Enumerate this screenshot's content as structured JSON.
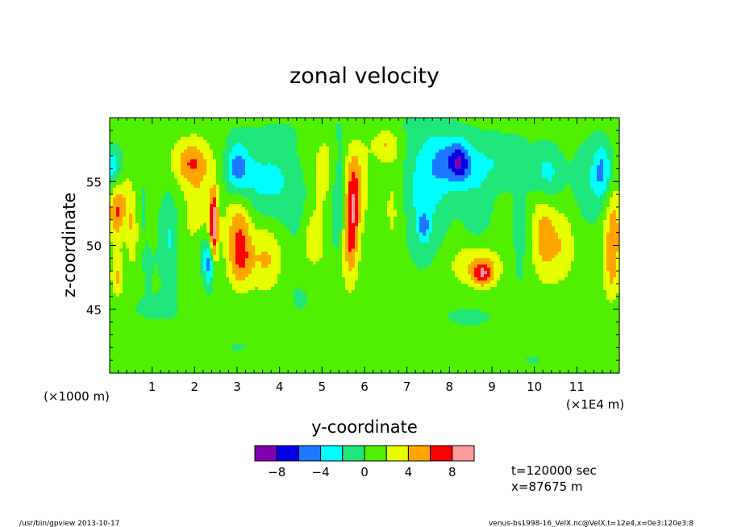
{
  "chart_data": {
    "type": "heatmap",
    "title": "zonal velocity",
    "xlabel": "y-coordinate",
    "ylabel": "z-coordinate",
    "x_unit_note": "(×1E4 m)",
    "y_unit_note": "(×1000 m)",
    "xlim": [
      0,
      120000
    ],
    "ylim": [
      40000,
      60000
    ],
    "x_ticks": [
      {
        "value": 10000,
        "label": "1"
      },
      {
        "value": 20000,
        "label": "2"
      },
      {
        "value": 30000,
        "label": "3"
      },
      {
        "value": 40000,
        "label": "4"
      },
      {
        "value": 50000,
        "label": "5"
      },
      {
        "value": 60000,
        "label": "6"
      },
      {
        "value": 70000,
        "label": "7"
      },
      {
        "value": 80000,
        "label": "8"
      },
      {
        "value": 90000,
        "label": "9"
      },
      {
        "value": 100000,
        "label": "10"
      },
      {
        "value": 110000,
        "label": "11"
      }
    ],
    "y_ticks": [
      {
        "value": 45000,
        "label": "45"
      },
      {
        "value": 50000,
        "label": "50"
      },
      {
        "value": 55000,
        "label": "55"
      }
    ],
    "colorbar": {
      "levels": [
        -10,
        -8,
        -6,
        -4,
        -2,
        0,
        2,
        4,
        6,
        8,
        10
      ],
      "colors": [
        "#8000b0",
        "#0000e6",
        "#1e78ff",
        "#00ffff",
        "#1ee67a",
        "#50f000",
        "#e6ff00",
        "#ffa500",
        "#ff0000",
        "#ff9a9a"
      ],
      "tick_labels": [
        {
          "value": -8,
          "label": "−8"
        },
        {
          "value": -4,
          "label": "−4"
        },
        {
          "value": 0,
          "label": "0"
        },
        {
          "value": 4,
          "label": "4"
        },
        {
          "value": 8,
          "label": "8"
        }
      ]
    },
    "background_value": 0.8,
    "features": [
      {
        "y": 3000,
        "z": 54000,
        "amp": 2.5,
        "sy": 1800,
        "sz": 2000
      },
      {
        "y": 1000,
        "z": 56000,
        "amp": -4.5,
        "sy": 1800,
        "sz": 1200
      },
      {
        "y": 1500,
        "z": 52500,
        "amp": 4.0,
        "sy": 1300,
        "sz": 1500
      },
      {
        "y": 1800,
        "z": 47500,
        "amp": 3.5,
        "sy": 1000,
        "sz": 1200
      },
      {
        "y": 5500,
        "z": 51500,
        "amp": 3.5,
        "sy": 1000,
        "sz": 2000
      },
      {
        "y": 7000,
        "z": 53000,
        "amp": -1.5,
        "sy": 1500,
        "sz": 2000
      },
      {
        "y": 9000,
        "z": 48500,
        "amp": -1.0,
        "sy": 1500,
        "sz": 1500
      },
      {
        "y": 14000,
        "z": 50500,
        "amp": -3.0,
        "sy": 1600,
        "sz": 2500
      },
      {
        "y": 19000,
        "z": 56500,
        "amp": 4.5,
        "sy": 3000,
        "sz": 1200
      },
      {
        "y": 21000,
        "z": 53000,
        "amp": 2.5,
        "sy": 2500,
        "sz": 3000
      },
      {
        "y": 24500,
        "z": 51500,
        "amp": 8.5,
        "sy": 700,
        "sz": 2000
      },
      {
        "y": 23500,
        "z": 48500,
        "amp": -5.5,
        "sy": 800,
        "sz": 1200
      },
      {
        "y": 22000,
        "z": 49500,
        "amp": -2.5,
        "sy": 1500,
        "sz": 1500
      },
      {
        "y": 30000,
        "z": 56000,
        "amp": -5.0,
        "sy": 1800,
        "sz": 1500
      },
      {
        "y": 33500,
        "z": 55000,
        "amp": -3.0,
        "sy": 3500,
        "sz": 2200
      },
      {
        "y": 30500,
        "z": 51500,
        "amp": 5.0,
        "sy": 2200,
        "sz": 2300
      },
      {
        "y": 31000,
        "z": 48500,
        "amp": 3.5,
        "sy": 2000,
        "sz": 1500
      },
      {
        "y": 37000,
        "z": 49000,
        "amp": 3.5,
        "sy": 2500,
        "sz": 2000
      },
      {
        "y": 40000,
        "z": 55000,
        "amp": -2.5,
        "sy": 3000,
        "sz": 2500
      },
      {
        "y": 45000,
        "z": 51000,
        "amp": -2.5,
        "sy": 2000,
        "sz": 2500
      },
      {
        "y": 47000,
        "z": 50500,
        "amp": 3.5,
        "sy": 2500,
        "sz": 1800
      },
      {
        "y": 50500,
        "z": 56000,
        "amp": 2.5,
        "sy": 1800,
        "sz": 2000
      },
      {
        "y": 54000,
        "z": 53000,
        "amp": -3.0,
        "sy": 1500,
        "sz": 3000
      },
      {
        "y": 57000,
        "z": 53000,
        "amp": 6.5,
        "sy": 1200,
        "sz": 3000
      },
      {
        "y": 56000,
        "z": 49500,
        "amp": 2.5,
        "sy": 1500,
        "sz": 2500
      },
      {
        "y": 59000,
        "z": 55000,
        "amp": 2.5,
        "sy": 1500,
        "sz": 2500
      },
      {
        "y": 65000,
        "z": 58000,
        "amp": 3.5,
        "sy": 2500,
        "sz": 900
      },
      {
        "y": 67000,
        "z": 53000,
        "amp": 2.0,
        "sy": 2000,
        "sz": 3000
      },
      {
        "y": 74000,
        "z": 54000,
        "amp": -3.5,
        "sy": 4000,
        "sz": 3500
      },
      {
        "y": 74000,
        "z": 51500,
        "amp": -4.0,
        "sy": 800,
        "sz": 800
      },
      {
        "y": 80000,
        "z": 56500,
        "amp": -4.5,
        "sy": 3500,
        "sz": 1500
      },
      {
        "y": 82500,
        "z": 56500,
        "amp": -4.5,
        "sy": 1500,
        "sz": 1000
      },
      {
        "y": 86500,
        "z": 53000,
        "amp": -2.0,
        "sy": 2500,
        "sz": 2500
      },
      {
        "y": 86000,
        "z": 48500,
        "amp": 3.0,
        "sy": 4500,
        "sz": 1300
      },
      {
        "y": 88000,
        "z": 47800,
        "amp": 5.5,
        "sy": 1800,
        "sz": 700
      },
      {
        "y": 91000,
        "z": 56500,
        "amp": -2.5,
        "sy": 6000,
        "sz": 1500
      },
      {
        "y": 96500,
        "z": 51500,
        "amp": -2.5,
        "sy": 1000,
        "sz": 3000
      },
      {
        "y": 102000,
        "z": 51000,
        "amp": 3.5,
        "sy": 1800,
        "sz": 2500
      },
      {
        "y": 106000,
        "z": 50000,
        "amp": 3.0,
        "sy": 2500,
        "sz": 2000
      },
      {
        "y": 103000,
        "z": 55500,
        "amp": -3.5,
        "sy": 2500,
        "sz": 1500
      },
      {
        "y": 113000,
        "z": 55000,
        "amp": -2.0,
        "sy": 3000,
        "sz": 2500
      },
      {
        "y": 116000,
        "z": 55800,
        "amp": -4.5,
        "sy": 1500,
        "sz": 1500
      },
      {
        "y": 118500,
        "z": 51000,
        "amp": 4.5,
        "sy": 1500,
        "sz": 2500
      },
      {
        "y": 118000,
        "z": 47500,
        "amp": 2.0,
        "sy": 1200,
        "sz": 1500
      },
      {
        "y": 10000,
        "z": 45000,
        "amp": -0.9,
        "sy": 8000,
        "sz": 1200
      },
      {
        "y": 45000,
        "z": 45500,
        "amp": -0.7,
        "sy": 10000,
        "sz": 1500
      },
      {
        "y": 85000,
        "z": 44500,
        "amp": -0.9,
        "sy": 10000,
        "sz": 1500
      },
      {
        "y": 30000,
        "z": 42000,
        "amp": -0.8,
        "sy": 8000,
        "sz": 1200
      },
      {
        "y": 100000,
        "z": 41000,
        "amp": -0.8,
        "sy": 8000,
        "sz": 1000
      },
      {
        "y": 60000,
        "z": 59000,
        "amp": -0.8,
        "sy": 15000,
        "sz": 1000
      }
    ],
    "time_label": "t=120000 sec",
    "x_label_info": "x=87675 m"
  },
  "footer": {
    "left": "/usr/bin/gpview  2013-10-17",
    "right": "venus-bs1998-16_VelX.nc@VelX,t=12e4,x=0e3:120e3:8"
  }
}
